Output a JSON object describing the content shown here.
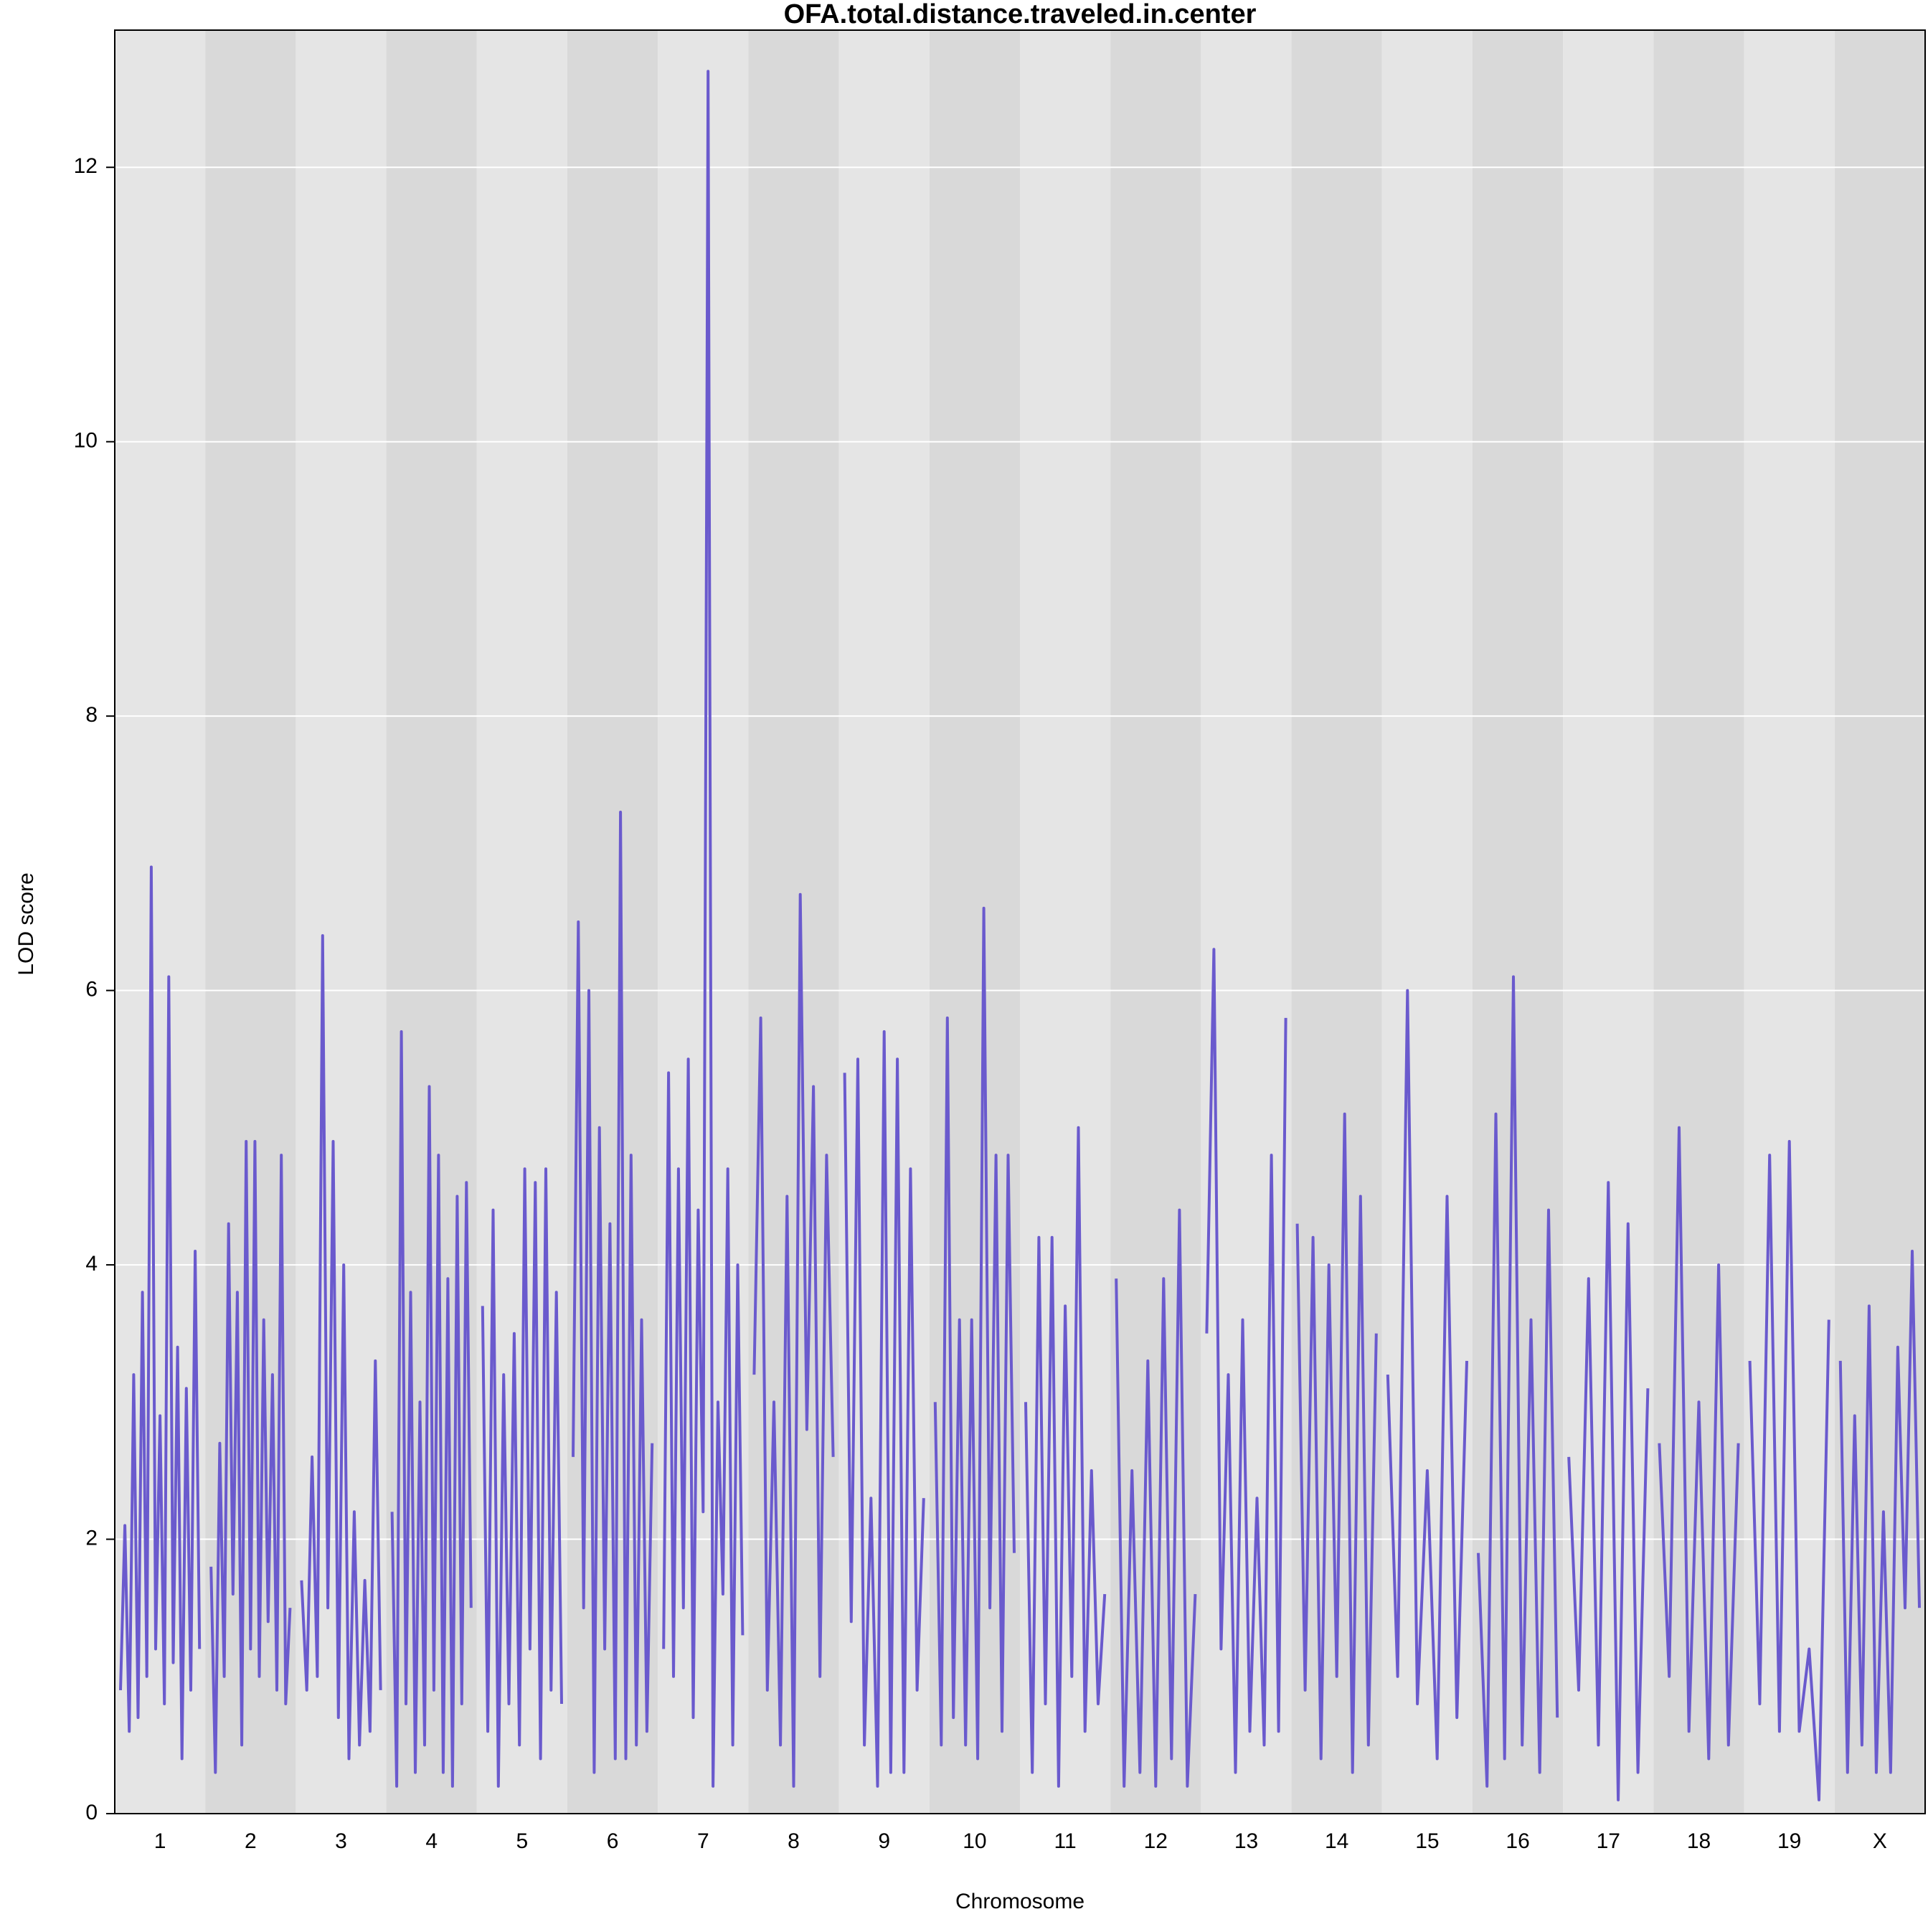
{
  "chart_data": {
    "type": "line",
    "title": "OFA.total.distance.traveled.in.center",
    "xlabel": "Chromosome",
    "ylabel": "LOD score",
    "ylim": [
      0,
      13
    ],
    "yticks": [
      0,
      2,
      4,
      6,
      8,
      10,
      12
    ],
    "grid": true,
    "color": "#6a5acd",
    "band_colors": [
      "#e5e5e5",
      "#d9d9d9"
    ],
    "series": [
      {
        "name": "1",
        "values": [
          0.9,
          2.1,
          0.6,
          3.2,
          0.7,
          3.8,
          1.0,
          6.9,
          1.2,
          2.9,
          0.8,
          6.1,
          1.1,
          3.4,
          0.4,
          3.1,
          0.9,
          4.1,
          1.2
        ]
      },
      {
        "name": "2",
        "values": [
          1.8,
          0.3,
          2.7,
          1.0,
          4.3,
          1.6,
          3.8,
          0.5,
          4.9,
          1.2,
          4.9,
          1.0,
          3.6,
          1.4,
          3.2,
          0.9,
          4.8,
          0.8,
          1.5
        ]
      },
      {
        "name": "3",
        "values": [
          1.7,
          0.9,
          2.6,
          1.0,
          6.4,
          1.5,
          4.9,
          0.7,
          4.0,
          0.4,
          2.2,
          0.5,
          1.7,
          0.6,
          3.3,
          0.9
        ]
      },
      {
        "name": "4",
        "values": [
          2.2,
          0.2,
          5.7,
          0.8,
          3.8,
          0.3,
          3.0,
          0.5,
          5.3,
          0.9,
          4.8,
          0.3,
          3.9,
          0.2,
          4.5,
          0.8,
          4.6,
          1.5
        ]
      },
      {
        "name": "5",
        "values": [
          3.7,
          0.6,
          4.4,
          0.2,
          3.2,
          0.8,
          3.5,
          0.5,
          4.7,
          1.2,
          4.6,
          0.4,
          4.7,
          0.9,
          3.8,
          0.8
        ]
      },
      {
        "name": "6",
        "values": [
          2.6,
          6.5,
          1.5,
          6.0,
          0.3,
          5.0,
          1.2,
          4.3,
          0.4,
          7.3,
          0.4,
          4.8,
          0.5,
          3.6,
          0.6,
          2.7
        ]
      },
      {
        "name": "7",
        "values": [
          1.2,
          5.4,
          1.0,
          4.7,
          1.5,
          5.5,
          0.7,
          4.4,
          2.2,
          12.7,
          0.2,
          3.0,
          1.6,
          4.7,
          0.5,
          4.0,
          1.3
        ]
      },
      {
        "name": "8",
        "values": [
          3.2,
          5.8,
          0.9,
          3.0,
          0.5,
          4.5,
          0.2,
          6.7,
          2.8,
          5.3,
          1.0,
          4.8,
          2.6
        ]
      },
      {
        "name": "9",
        "values": [
          5.4,
          1.4,
          5.5,
          0.5,
          2.3,
          0.2,
          5.7,
          0.3,
          5.5,
          0.3,
          4.7,
          0.9,
          2.3
        ]
      },
      {
        "name": "10",
        "values": [
          3.0,
          0.5,
          5.8,
          0.7,
          3.6,
          0.5,
          3.6,
          0.4,
          6.6,
          1.5,
          4.8,
          0.6,
          4.8,
          1.9
        ]
      },
      {
        "name": "11",
        "values": [
          3.0,
          0.3,
          4.2,
          0.8,
          4.2,
          0.2,
          3.7,
          1.0,
          5.0,
          0.6,
          2.5,
          0.8,
          1.6
        ]
      },
      {
        "name": "12",
        "values": [
          3.9,
          0.2,
          2.5,
          0.3,
          3.3,
          0.2,
          3.9,
          0.4,
          4.4,
          0.2,
          1.6
        ]
      },
      {
        "name": "13",
        "values": [
          3.5,
          6.3,
          1.2,
          3.2,
          0.3,
          3.6,
          0.6,
          2.3,
          0.5,
          4.8,
          0.6,
          5.8
        ]
      },
      {
        "name": "14",
        "values": [
          4.3,
          0.9,
          4.2,
          0.4,
          4.0,
          1.0,
          5.1,
          0.3,
          4.5,
          0.5,
          3.5
        ]
      },
      {
        "name": "15",
        "values": [
          3.2,
          1.0,
          6.0,
          0.8,
          2.5,
          0.4,
          4.5,
          0.7,
          3.3
        ]
      },
      {
        "name": "16",
        "values": [
          1.9,
          0.2,
          5.1,
          0.4,
          6.1,
          0.5,
          3.6,
          0.3,
          4.4,
          0.7
        ]
      },
      {
        "name": "17",
        "values": [
          2.6,
          0.9,
          3.9,
          0.5,
          4.6,
          0.1,
          4.3,
          0.3,
          3.1
        ]
      },
      {
        "name": "18",
        "values": [
          2.7,
          1.0,
          5.0,
          0.6,
          3.0,
          0.4,
          4.0,
          0.5,
          2.7
        ]
      },
      {
        "name": "19",
        "values": [
          3.3,
          0.8,
          4.8,
          0.6,
          4.9,
          0.6,
          1.2,
          0.1,
          3.6
        ]
      },
      {
        "name": "X",
        "values": [
          3.3,
          0.3,
          2.9,
          0.5,
          3.7,
          0.3,
          2.2,
          0.3,
          3.4,
          1.5,
          4.1,
          1.5
        ]
      }
    ]
  }
}
